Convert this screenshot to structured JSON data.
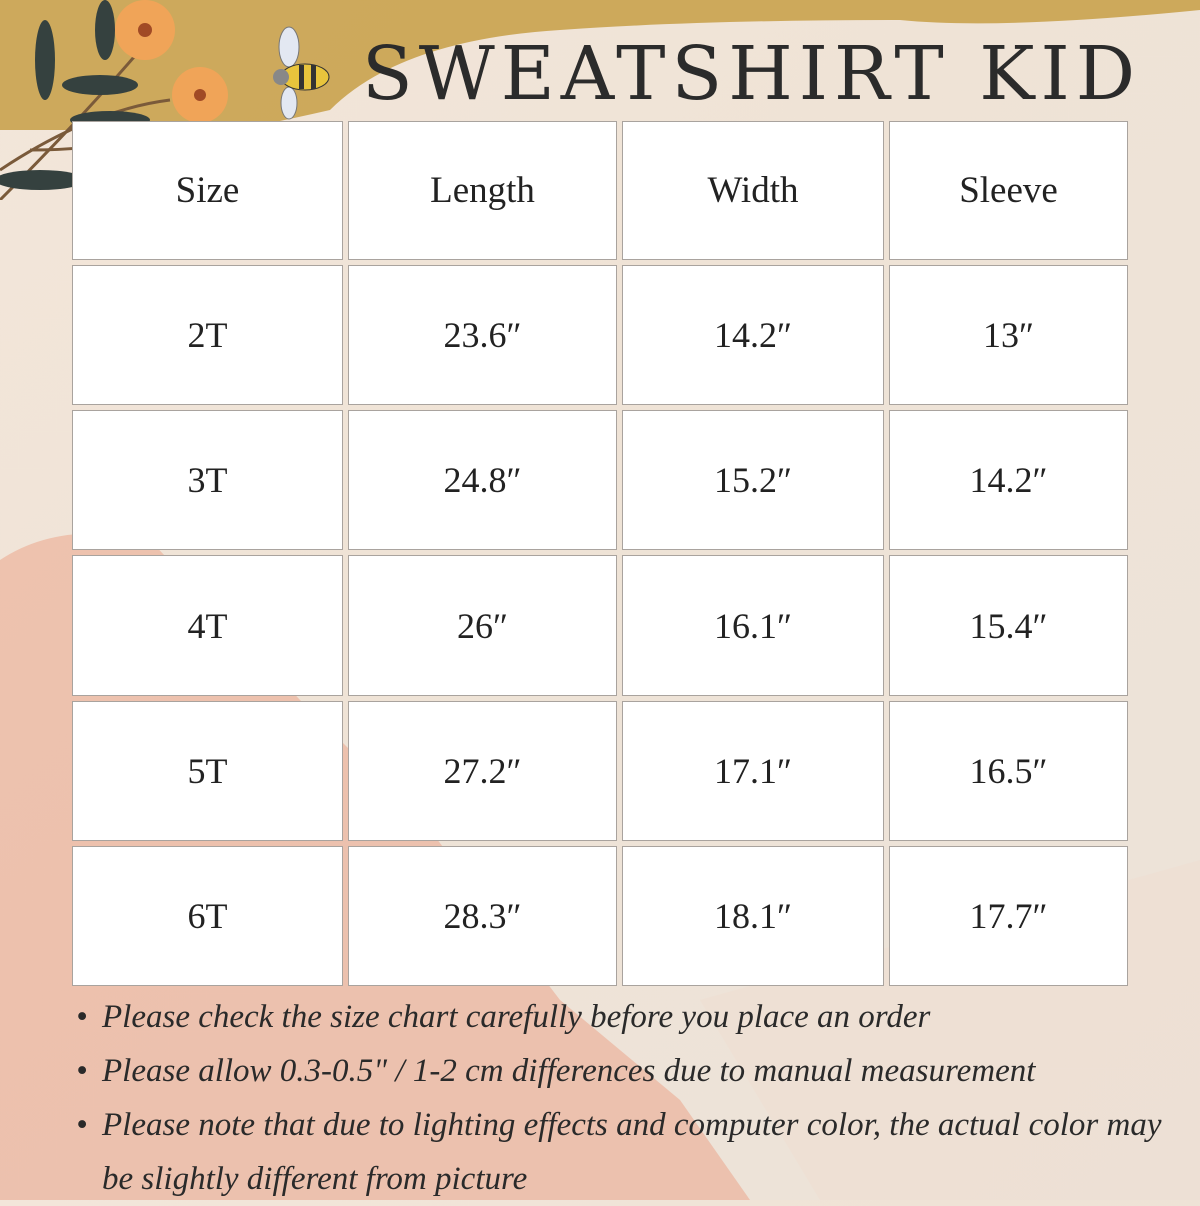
{
  "title": "SWEATSHIRT KID",
  "table": {
    "headers": [
      "Size",
      "Length",
      "Width",
      "Sleeve"
    ],
    "rows": [
      [
        "2T",
        "23.6″",
        "14.2″",
        "13″"
      ],
      [
        "3T",
        "24.8″",
        "15.2″",
        "14.2″"
      ],
      [
        "4T",
        "26″",
        "16.1″",
        "15.4″"
      ],
      [
        "5T",
        "27.2″",
        "17.1″",
        "16.5″"
      ],
      [
        "6T",
        "28.3″",
        "18.1″",
        "17.7″"
      ]
    ]
  },
  "notes": [
    "Please check the size chart carefully before you place an order",
    "Please allow 0.3-0.5\" / 1-2 cm differences due to manual measurement",
    "Please note that due to lighting effects and computer color, the actual color may be slightly different from picture"
  ],
  "decor": {
    "icons": [
      "flower-branch-illustration",
      "bee-illustration"
    ],
    "colors": {
      "gold": "#c9a24e",
      "peach": "#eba58c",
      "flower": "#f0a458",
      "leaf": "#35413f"
    }
  }
}
